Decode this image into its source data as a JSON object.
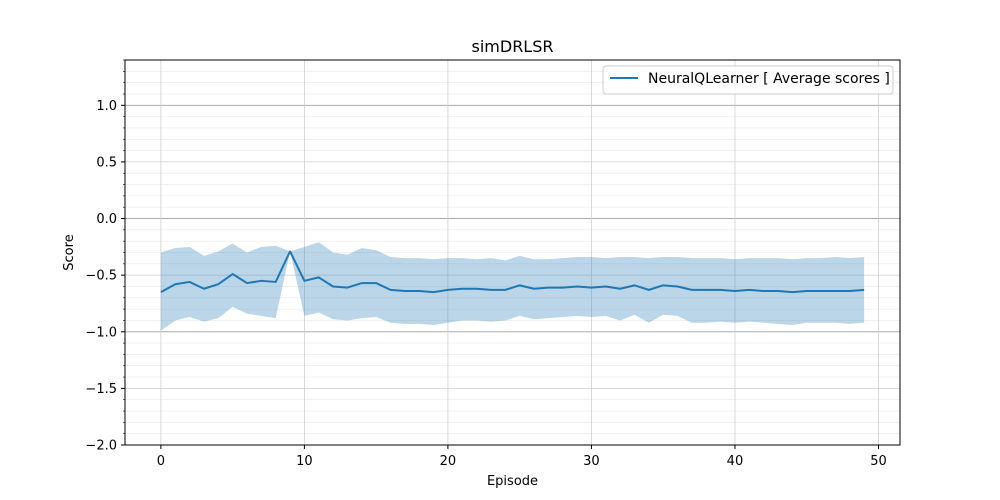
{
  "chart_data": {
    "type": "line",
    "title": "simDRLSR",
    "xlabel": "Episode",
    "ylabel": "Score",
    "xlim": [
      -2.5,
      51.5
    ],
    "ylim": [
      -2.0,
      1.4
    ],
    "xticks": [
      0,
      10,
      20,
      30,
      40,
      50
    ],
    "yticks": [
      -2.0,
      -1.5,
      -1.0,
      -0.5,
      0.0,
      0.5,
      1.0
    ],
    "ytick_labels": [
      "−2.0",
      "−1.5",
      "−1.0",
      "−0.5",
      "0.0",
      "0.5",
      "1.0"
    ],
    "grid": true,
    "legend_position": "top-right",
    "colors": {
      "line": "#1f77b4",
      "band": "#1f77b4"
    },
    "series": [
      {
        "name": "NeuralQLearner [ Average scores ]",
        "x": [
          0,
          1,
          2,
          3,
          4,
          5,
          6,
          7,
          8,
          9,
          10,
          11,
          12,
          13,
          14,
          15,
          16,
          17,
          18,
          19,
          20,
          21,
          22,
          23,
          24,
          25,
          26,
          27,
          28,
          29,
          30,
          31,
          32,
          33,
          34,
          35,
          36,
          37,
          38,
          39,
          40,
          41,
          42,
          43,
          44,
          45,
          46,
          47,
          48,
          49
        ],
        "mean": [
          -0.65,
          -0.58,
          -0.56,
          -0.62,
          -0.58,
          -0.49,
          -0.57,
          -0.55,
          -0.56,
          -0.29,
          -0.55,
          -0.52,
          -0.6,
          -0.61,
          -0.57,
          -0.57,
          -0.63,
          -0.64,
          -0.64,
          -0.65,
          -0.63,
          -0.62,
          -0.62,
          -0.63,
          -0.63,
          -0.59,
          -0.62,
          -0.61,
          -0.61,
          -0.6,
          -0.61,
          -0.6,
          -0.62,
          -0.59,
          -0.63,
          -0.59,
          -0.6,
          -0.63,
          -0.63,
          -0.63,
          -0.64,
          -0.63,
          -0.64,
          -0.64,
          -0.65,
          -0.64,
          -0.64,
          -0.64,
          -0.64,
          -0.63
        ],
        "upper": [
          -0.3,
          -0.26,
          -0.25,
          -0.33,
          -0.29,
          -0.22,
          -0.3,
          -0.25,
          -0.24,
          -0.29,
          -0.25,
          -0.21,
          -0.3,
          -0.32,
          -0.26,
          -0.28,
          -0.34,
          -0.35,
          -0.35,
          -0.36,
          -0.35,
          -0.35,
          -0.36,
          -0.35,
          -0.37,
          -0.33,
          -0.36,
          -0.36,
          -0.35,
          -0.34,
          -0.34,
          -0.35,
          -0.34,
          -0.34,
          -0.35,
          -0.34,
          -0.34,
          -0.35,
          -0.35,
          -0.35,
          -0.36,
          -0.35,
          -0.35,
          -0.35,
          -0.36,
          -0.35,
          -0.35,
          -0.34,
          -0.35,
          -0.34
        ],
        "lower": [
          -0.99,
          -0.9,
          -0.87,
          -0.91,
          -0.88,
          -0.78,
          -0.84,
          -0.86,
          -0.88,
          -0.29,
          -0.86,
          -0.83,
          -0.89,
          -0.9,
          -0.88,
          -0.87,
          -0.92,
          -0.93,
          -0.93,
          -0.94,
          -0.92,
          -0.9,
          -0.9,
          -0.91,
          -0.9,
          -0.86,
          -0.89,
          -0.88,
          -0.87,
          -0.86,
          -0.87,
          -0.86,
          -0.9,
          -0.85,
          -0.92,
          -0.85,
          -0.86,
          -0.92,
          -0.92,
          -0.91,
          -0.92,
          -0.91,
          -0.92,
          -0.93,
          -0.94,
          -0.92,
          -0.92,
          -0.92,
          -0.93,
          -0.92
        ]
      }
    ]
  }
}
